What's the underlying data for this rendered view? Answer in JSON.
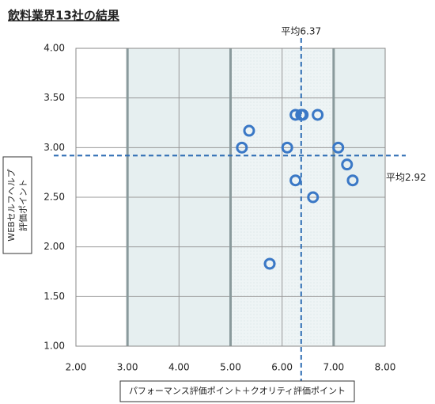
{
  "chart_data": {
    "type": "scatter",
    "title": "飲料業界13社の結果",
    "x_label": "パフォーマンス評価ポイント＋クオリティ評価ポイント",
    "y_label_lines": [
      "WEBセルフヘルプ",
      "評価ポイント"
    ],
    "x": [
      5.22,
      5.36,
      5.76,
      6.1,
      6.26,
      6.37,
      6.4,
      6.69,
      6.26,
      6.6,
      7.09,
      7.26,
      7.37
    ],
    "values": [
      3.0,
      3.17,
      1.83,
      3.0,
      3.33,
      3.33,
      3.33,
      3.33,
      2.67,
      2.5,
      3.0,
      2.83,
      2.67
    ],
    "color": "#3a78c6",
    "xlim": [
      2,
      8
    ],
    "xticks": [
      {
        "value": 2,
        "label": "2.00"
      },
      {
        "value": 3,
        "label": "3.00"
      },
      {
        "value": 4,
        "label": "4.00"
      },
      {
        "value": 5,
        "label": "5.00"
      },
      {
        "value": 6,
        "label": "6.00"
      },
      {
        "value": 7,
        "label": "7.00"
      },
      {
        "value": 8,
        "label": "8.00"
      }
    ],
    "ylim": [
      1,
      4
    ],
    "yticks": [
      {
        "value": 1,
        "label": "1.00"
      },
      {
        "value": 1.5,
        "label": "1.50"
      },
      {
        "value": 2,
        "label": "2.00"
      },
      {
        "value": 2.5,
        "label": "2.50"
      },
      {
        "value": 3,
        "label": "3.00"
      },
      {
        "value": 3.5,
        "label": "3.50"
      },
      {
        "value": 4,
        "label": "4.00"
      }
    ],
    "grid": true,
    "mean_x": {
      "value": 6.37,
      "label": "平均6.37"
    },
    "mean_y": {
      "value": 2.92,
      "label": "平均2.92"
    }
  }
}
